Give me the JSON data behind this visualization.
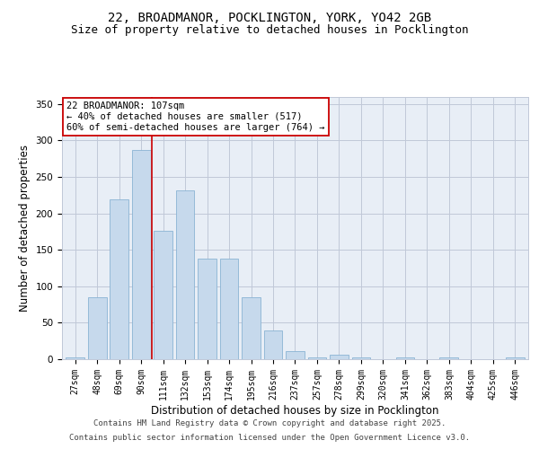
{
  "title_line1": "22, BROADMANOR, POCKLINGTON, YORK, YO42 2GB",
  "title_line2": "Size of property relative to detached houses in Pocklington",
  "xlabel": "Distribution of detached houses by size in Pocklington",
  "ylabel": "Number of detached properties",
  "categories": [
    "27sqm",
    "48sqm",
    "69sqm",
    "90sqm",
    "111sqm",
    "132sqm",
    "153sqm",
    "174sqm",
    "195sqm",
    "216sqm",
    "237sqm",
    "257sqm",
    "278sqm",
    "299sqm",
    "320sqm",
    "341sqm",
    "362sqm",
    "383sqm",
    "404sqm",
    "425sqm",
    "446sqm"
  ],
  "values": [
    2,
    85,
    219,
    287,
    176,
    232,
    138,
    138,
    85,
    40,
    11,
    2,
    6,
    2,
    0,
    2,
    0,
    2,
    0,
    0,
    2
  ],
  "bar_color": "#c6d9ec",
  "bar_edge_color": "#8ab4d4",
  "grid_color": "#c0c8d8",
  "background_color": "#e8eef6",
  "vline_x": 3.5,
  "vline_color": "#cc0000",
  "annotation_text": "22 BROADMANOR: 107sqm\n← 40% of detached houses are smaller (517)\n60% of semi-detached houses are larger (764) →",
  "annotation_box_color": "#cc0000",
  "ylim": [
    0,
    360
  ],
  "yticks": [
    0,
    50,
    100,
    150,
    200,
    250,
    300,
    350
  ],
  "footer_line1": "Contains HM Land Registry data © Crown copyright and database right 2025.",
  "footer_line2": "Contains public sector information licensed under the Open Government Licence v3.0.",
  "title_fontsize": 10,
  "subtitle_fontsize": 9,
  "axis_label_fontsize": 8.5,
  "tick_fontsize": 7,
  "footer_fontsize": 6.5
}
